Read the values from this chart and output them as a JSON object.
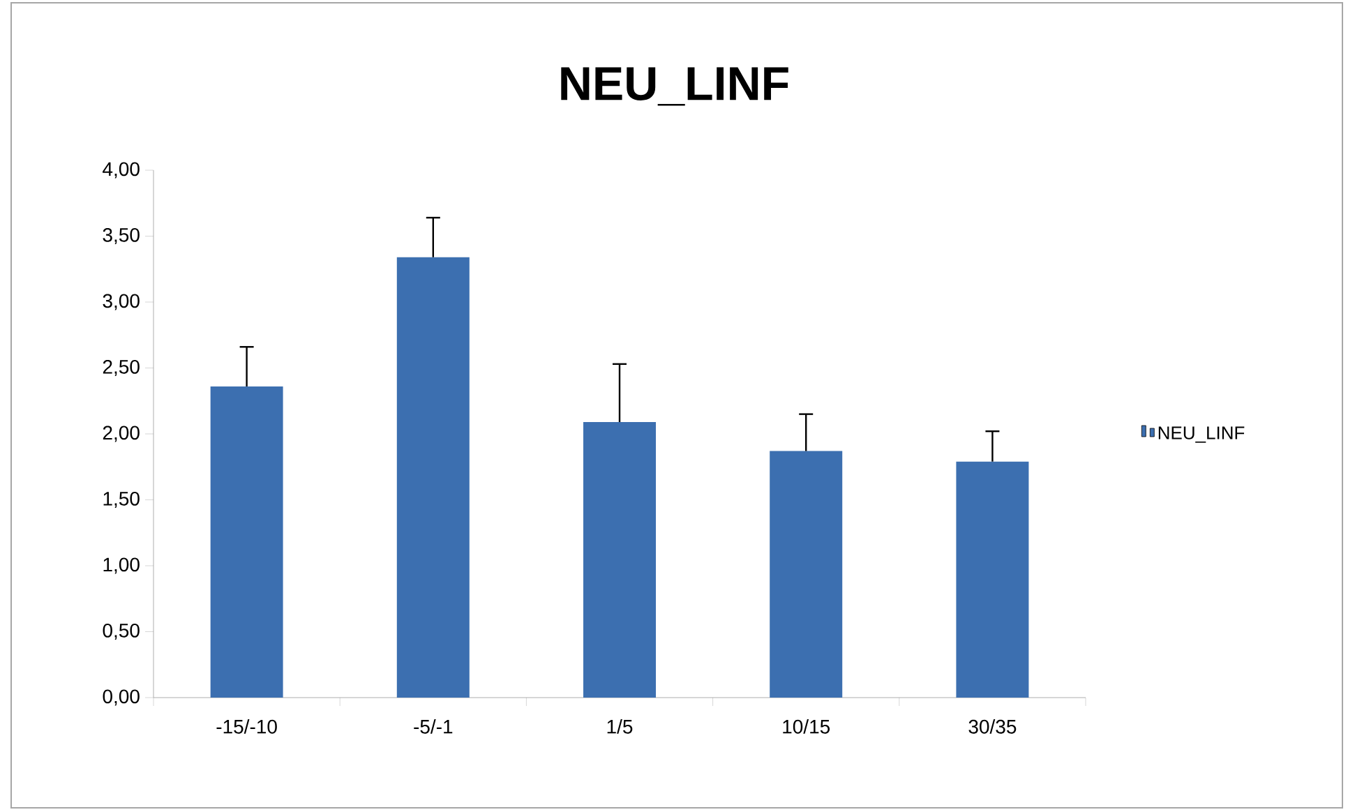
{
  "chart_data": {
    "type": "bar",
    "title": "NEU_LINF",
    "categories": [
      "-15/-10",
      "-5/-1",
      "1/5",
      "10/15",
      "30/35"
    ],
    "series": [
      {
        "name": "NEU_LINF",
        "color": "#3c6fb0",
        "values": [
          2.36,
          3.34,
          2.09,
          1.87,
          1.79
        ],
        "errors": [
          [
            2.36,
            2.66
          ],
          [
            3.34,
            3.64
          ],
          [
            2.09,
            2.53
          ],
          [
            1.87,
            2.15
          ],
          [
            1.79,
            2.02
          ]
        ]
      }
    ],
    "ylim": [
      0,
      4
    ],
    "yticks": [
      {
        "value": 0,
        "label": "0,00"
      },
      {
        "value": 0.5,
        "label": "0,50"
      },
      {
        "value": 1,
        "label": "1,00"
      },
      {
        "value": 1.5,
        "label": "1,50"
      },
      {
        "value": 2,
        "label": "2,00"
      },
      {
        "value": 2.5,
        "label": "2,50"
      },
      {
        "value": 3,
        "label": "3,00"
      },
      {
        "value": 3.5,
        "label": "3,50"
      },
      {
        "value": 4,
        "label": "4,00"
      }
    ],
    "legend": "right",
    "grid": false
  }
}
